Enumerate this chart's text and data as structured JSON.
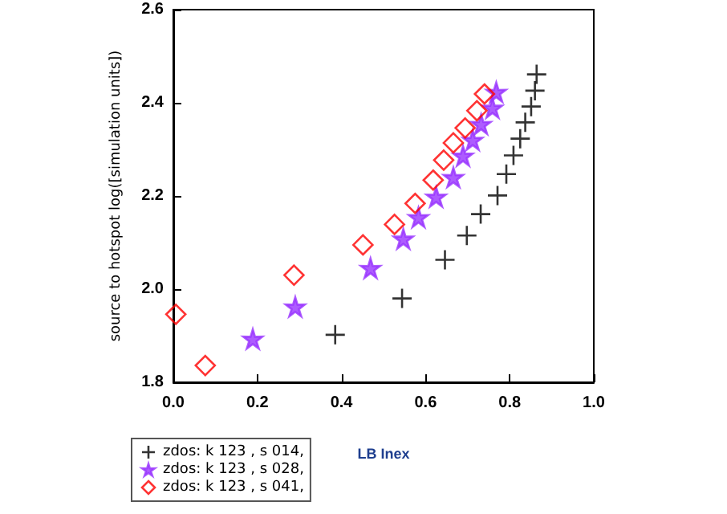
{
  "chart_data": {
    "type": "scatter",
    "xlabel": "LB Inex",
    "ylabel": "source to hotspot log([simulation units])",
    "xlim": [
      0,
      1
    ],
    "xticks": [
      {
        "value": 0,
        "label": "0.0"
      },
      0.2,
      0.4,
      0.6,
      0.8,
      {
        "value": 1,
        "label": "1.0"
      }
    ],
    "ylim": [
      1.8,
      2.6
    ],
    "yticks": [
      1.8,
      {
        "value": 2,
        "label": "2.0"
      },
      2.2,
      2.4,
      2.6
    ],
    "grid": false,
    "legend": "bottom left",
    "series": [
      {
        "name": "zdos: k 123 , s 014,",
        "color": "#000000",
        "marker": "cross",
        "x": [
          0.385,
          0.544,
          0.646,
          0.698,
          0.731,
          0.771,
          0.792,
          0.809,
          0.825,
          0.837,
          0.851,
          0.86,
          0.864
        ],
        "values": [
          1.902,
          1.98,
          2.063,
          2.115,
          2.161,
          2.201,
          2.247,
          2.287,
          2.323,
          2.358,
          2.392,
          2.426,
          2.461
        ]
      },
      {
        "name": "zdos: k 123 , s 028,",
        "color": "#9933ff",
        "marker": "star",
        "x": [
          0.189,
          0.29,
          0.469,
          0.547,
          0.583,
          0.625,
          0.666,
          0.689,
          0.712,
          0.732,
          0.759,
          0.768
        ],
        "values": [
          1.893,
          1.962,
          2.045,
          2.108,
          2.154,
          2.198,
          2.24,
          2.286,
          2.32,
          2.354,
          2.389,
          2.423
        ]
      },
      {
        "name": "zdos: k 123 , s 041,",
        "color": "#ff0000",
        "marker": "diamond",
        "x": [
          0.006,
          0.076,
          0.287,
          0.451,
          0.526,
          0.575,
          0.618,
          0.643,
          0.666,
          0.694,
          0.722,
          0.74
        ],
        "values": [
          1.946,
          1.836,
          2.03,
          2.095,
          2.139,
          2.184,
          2.234,
          2.277,
          2.314,
          2.346,
          2.383,
          2.419
        ]
      }
    ]
  }
}
